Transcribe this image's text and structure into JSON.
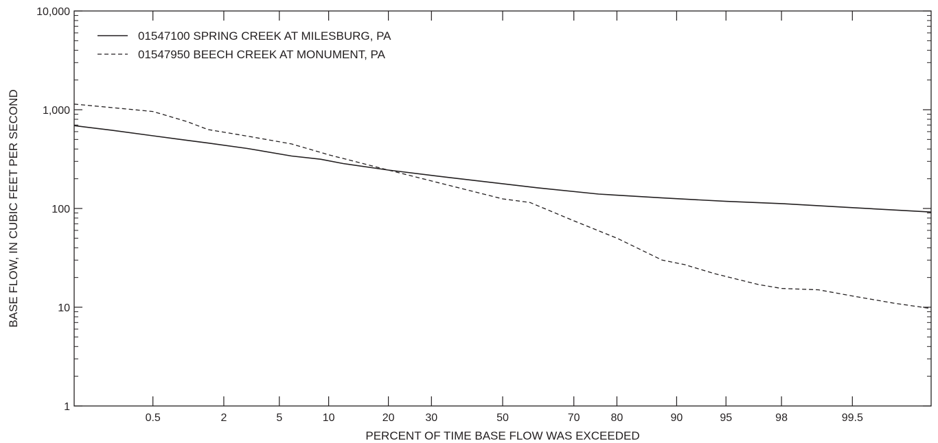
{
  "chart_data": {
    "type": "line",
    "title": "",
    "xlabel": "PERCENT OF TIME BASE FLOW WAS EXCEEDED",
    "ylabel": "BASE FLOW, IN CUBIC FEET PER SECOND",
    "x_scale": "normal-probability",
    "y_scale": "log",
    "xlim": [
      0.08,
      99.92
    ],
    "ylim": [
      1,
      10000
    ],
    "x_ticks": [
      0.5,
      2,
      5,
      10,
      20,
      30,
      50,
      70,
      80,
      90,
      95,
      98,
      99.5
    ],
    "x_tick_labels": [
      "0.5",
      "2",
      "5",
      "10",
      "20",
      "30",
      "50",
      "70",
      "80",
      "90",
      "95",
      "98",
      "99.5"
    ],
    "y_ticks": [
      1,
      10,
      100,
      1000,
      10000
    ],
    "y_tick_labels": [
      "1",
      "10",
      "100",
      "1,000",
      "10,000"
    ],
    "grid": false,
    "legend_position": "top-left",
    "series": [
      {
        "name": "01547100 SPRING CREEK AT MILESBURG, PA",
        "style": "solid",
        "color": "#231f20",
        "x": [
          0.08,
          0.2,
          0.5,
          1,
          1.5,
          3,
          6,
          9,
          12,
          20,
          35,
          60,
          76,
          88,
          95,
          98,
          99.5,
          99.92
        ],
        "y": [
          690,
          620,
          545,
          490,
          460,
          405,
          340,
          315,
          285,
          245,
          205,
          162,
          140,
          128,
          118,
          112,
          102,
          92
        ]
      },
      {
        "name": "01547950 BEECH CREEK AT MONUMENT, PA",
        "style": "dashed",
        "color": "#231f20",
        "x": [
          0.08,
          0.2,
          0.5,
          1,
          1.5,
          3,
          6,
          10,
          20,
          35,
          50,
          58,
          70,
          80,
          88,
          91,
          94,
          97,
          98,
          99,
          99.5,
          99.8,
          99.92
        ],
        "y": [
          1140,
          1050,
          960,
          760,
          630,
          540,
          450,
          350,
          245,
          170,
          125,
          115,
          75,
          50,
          30,
          27,
          22,
          17,
          15.5,
          15,
          13,
          11,
          9.7
        ]
      }
    ]
  }
}
